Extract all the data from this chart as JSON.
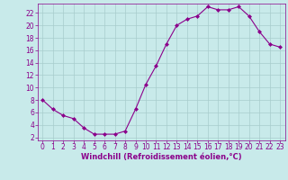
{
  "x": [
    0,
    1,
    2,
    3,
    4,
    5,
    6,
    7,
    8,
    9,
    10,
    11,
    12,
    13,
    14,
    15,
    16,
    17,
    18,
    19,
    20,
    21,
    22,
    23
  ],
  "y": [
    8,
    6.5,
    5.5,
    5,
    3.5,
    2.5,
    2.5,
    2.5,
    3,
    6.5,
    10.5,
    13.5,
    17,
    20,
    21,
    21.5,
    23,
    22.5,
    22.5,
    23,
    21.5,
    19,
    17,
    16.5
  ],
  "line_color": "#8B008B",
  "marker": "D",
  "marker_size": 2,
  "bg_color": "#c8eaea",
  "grid_color": "#a8cccc",
  "xlabel": "Windchill (Refroidissement éolien,°C)",
  "xlabel_color": "#8B008B",
  "tick_color": "#8B008B",
  "spine_color": "#8B008B",
  "ylim": [
    1.5,
    23.5
  ],
  "xlim": [
    -0.5,
    23.5
  ],
  "yticks": [
    2,
    4,
    6,
    8,
    10,
    12,
    14,
    16,
    18,
    20,
    22
  ],
  "xticks": [
    0,
    1,
    2,
    3,
    4,
    5,
    6,
    7,
    8,
    9,
    10,
    11,
    12,
    13,
    14,
    15,
    16,
    17,
    18,
    19,
    20,
    21,
    22,
    23
  ],
  "tick_fontsize": 5.5,
  "xlabel_fontsize": 6,
  "linewidth": 0.8
}
